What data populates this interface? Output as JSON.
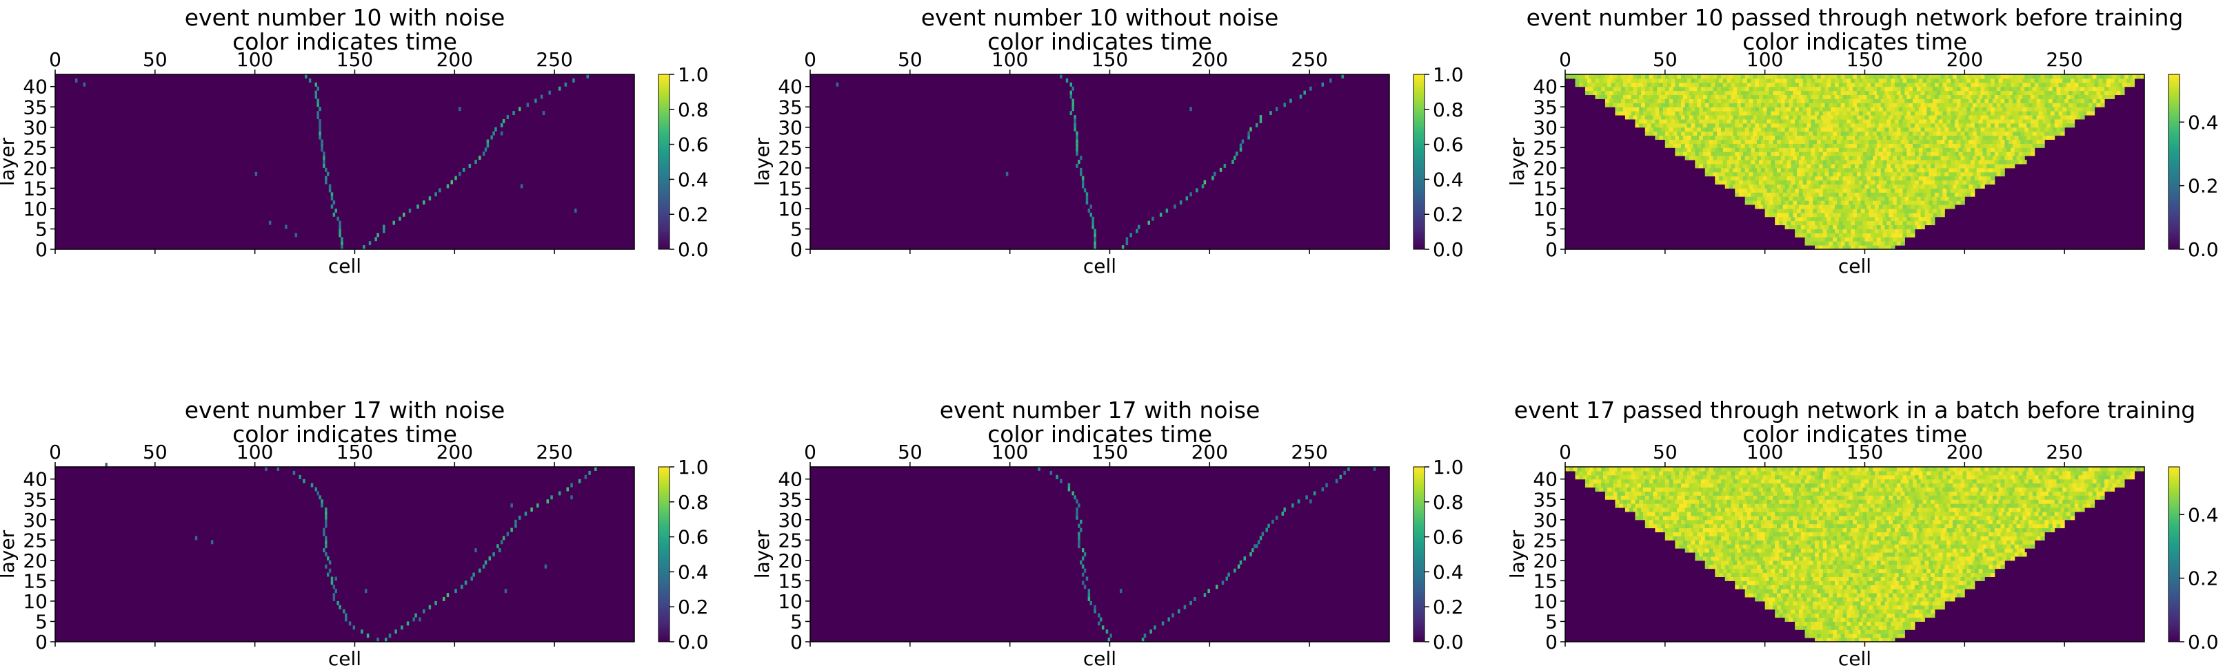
{
  "colormap": "viridis",
  "viridis_stops": [
    "#440154",
    "#482878",
    "#3e4989",
    "#31688e",
    "#26828e",
    "#1f9e89",
    "#35b779",
    "#6ece58",
    "#b5de2b",
    "#fde725"
  ],
  "chart_data": [
    {
      "type": "heatmap",
      "title": "event number 10 with noise",
      "subtitle": "color indicates time",
      "xlabel": "cell",
      "ylabel": "layer",
      "xlim": [
        0,
        290
      ],
      "ylim": [
        0,
        43
      ],
      "xticks": [
        "0",
        "50",
        "100",
        "150",
        "200",
        "250"
      ],
      "yticks": [
        "0",
        "5",
        "10",
        "15",
        "20",
        "25",
        "30",
        "35",
        "40"
      ],
      "colorbar": {
        "range": [
          0,
          1
        ],
        "ticks": [
          "0.0",
          "0.2",
          "0.4",
          "0.6",
          "0.8",
          "1.0"
        ]
      },
      "background_value": 0,
      "tracks": [
        {
          "points": [
            [
              143,
              0
            ],
            [
              142,
              4
            ],
            [
              140,
              8
            ],
            [
              138,
              12
            ],
            [
              136,
              16
            ],
            [
              134,
              20
            ],
            [
              133,
              25
            ],
            [
              132,
              30
            ],
            [
              131,
              35
            ],
            [
              130,
              40
            ],
            [
              122,
              43
            ]
          ],
          "value": 0.55
        },
        {
          "points": [
            [
              155,
              0
            ],
            [
              165,
              5
            ],
            [
              175,
              8
            ],
            [
              188,
              12
            ],
            [
              200,
              17
            ],
            [
              212,
              22
            ],
            [
              218,
              27
            ],
            [
              225,
              32
            ],
            [
              240,
              36
            ],
            [
              255,
              40
            ],
            [
              270,
              43
            ]
          ],
          "value": 0.6
        }
      ],
      "noise_hits": [
        [
          10,
          41
        ],
        [
          14,
          40
        ],
        [
          100,
          18
        ],
        [
          107,
          6
        ],
        [
          202,
          34
        ],
        [
          244,
          33
        ],
        [
          223,
          28
        ],
        [
          115,
          5
        ],
        [
          120,
          3
        ],
        [
          233,
          15
        ],
        [
          260,
          9
        ]
      ],
      "noise_value": 0.35
    },
    {
      "type": "heatmap",
      "title": "event number 10 without noise",
      "subtitle": "color indicates time",
      "xlabel": "cell",
      "ylabel": "layer",
      "xlim": [
        0,
        290
      ],
      "ylim": [
        0,
        43
      ],
      "xticks": [
        "0",
        "50",
        "100",
        "150",
        "200",
        "250"
      ],
      "yticks": [
        "0",
        "5",
        "10",
        "15",
        "20",
        "25",
        "30",
        "35",
        "40"
      ],
      "colorbar": {
        "range": [
          0,
          1
        ],
        "ticks": [
          "0.0",
          "0.2",
          "0.4",
          "0.6",
          "0.8",
          "1.0"
        ]
      },
      "background_value": 0,
      "tracks": [
        {
          "points": [
            [
              143,
              0
            ],
            [
              142,
              4
            ],
            [
              140,
              8
            ],
            [
              138,
              12
            ],
            [
              136,
              16
            ],
            [
              134,
              20
            ],
            [
              133,
              25
            ],
            [
              132,
              30
            ],
            [
              131,
              35
            ],
            [
              130,
              40
            ],
            [
              122,
              43
            ]
          ],
          "value": 0.55
        },
        {
          "points": [
            [
              155,
              0
            ],
            [
              165,
              5
            ],
            [
              175,
              8
            ],
            [
              188,
              12
            ],
            [
              200,
              17
            ],
            [
              212,
              22
            ],
            [
              218,
              27
            ],
            [
              225,
              32
            ],
            [
              240,
              36
            ],
            [
              255,
              40
            ],
            [
              270,
              43
            ]
          ],
          "value": 0.6
        }
      ],
      "noise_hits": [
        [
          13,
          40
        ],
        [
          98,
          18
        ],
        [
          190,
          34
        ]
      ],
      "noise_value": 0.35
    },
    {
      "type": "heatmap",
      "title": "event number 10 passed through network before training",
      "subtitle": "color indicates time",
      "xlabel": "cell",
      "ylabel": "layer",
      "xlim": [
        0,
        290
      ],
      "ylim": [
        0,
        43
      ],
      "xticks": [
        "0",
        "50",
        "100",
        "150",
        "200",
        "250"
      ],
      "yticks": [
        "0",
        "5",
        "10",
        "15",
        "20",
        "25",
        "30",
        "35",
        "40"
      ],
      "colorbar": {
        "range": [
          0,
          0.55
        ],
        "ticks": [
          "0.0",
          "0.2",
          "0.4"
        ]
      },
      "background_value": 0,
      "wedge": {
        "top_left": 0,
        "top_right": 290,
        "bottom_left": 125,
        "bottom_right": 165,
        "fill_range": [
          0.45,
          0.55
        ]
      }
    },
    {
      "type": "heatmap",
      "title": "event number 17 with noise",
      "subtitle": "color indicates time",
      "xlabel": "cell",
      "ylabel": "layer",
      "xlim": [
        0,
        290
      ],
      "ylim": [
        0,
        43
      ],
      "xticks": [
        "0",
        "50",
        "100",
        "150",
        "200",
        "250"
      ],
      "yticks": [
        "0",
        "5",
        "10",
        "15",
        "20",
        "25",
        "30",
        "35",
        "40"
      ],
      "colorbar": {
        "range": [
          0,
          1
        ],
        "ticks": [
          "0.0",
          "0.2",
          "0.4",
          "0.6",
          "0.8",
          "1.0"
        ]
      },
      "background_value": 0,
      "tracks": [
        {
          "points": [
            [
              160,
              0
            ],
            [
              148,
              3
            ],
            [
              142,
              8
            ],
            [
              138,
              13
            ],
            [
              136,
              18
            ],
            [
              134,
              23
            ],
            [
              135,
              28
            ],
            [
              134,
              33
            ],
            [
              128,
              38
            ],
            [
              118,
              41
            ],
            [
              104,
              43
            ]
          ],
          "value": 0.55
        },
        {
          "points": [
            [
              165,
              0
            ],
            [
              178,
              5
            ],
            [
              190,
              9
            ],
            [
              205,
              14
            ],
            [
              215,
              18
            ],
            [
              222,
              23
            ],
            [
              232,
              30
            ],
            [
              248,
              35
            ],
            [
              262,
              39
            ],
            [
              272,
              43
            ]
          ],
          "value": 0.6
        }
      ],
      "noise_hits": [
        [
          25,
          43
        ],
        [
          70,
          25
        ],
        [
          78,
          24
        ],
        [
          140,
          15
        ],
        [
          155,
          12
        ],
        [
          210,
          22
        ],
        [
          225,
          12
        ],
        [
          245,
          18
        ],
        [
          258,
          35
        ],
        [
          228,
          33
        ],
        [
          105,
          42
        ],
        [
          182,
          5
        ]
      ],
      "noise_value": 0.35
    },
    {
      "type": "heatmap",
      "title": "event number 17 with noise",
      "subtitle": "color indicates time",
      "xlabel": "cell",
      "ylabel": "layer",
      "xlim": [
        0,
        290
      ],
      "ylim": [
        0,
        43
      ],
      "xticks": [
        "0",
        "50",
        "100",
        "150",
        "200",
        "250"
      ],
      "yticks": [
        "0",
        "5",
        "10",
        "15",
        "20",
        "25",
        "30",
        "35",
        "40"
      ],
      "colorbar": {
        "range": [
          0,
          1
        ],
        "ticks": [
          "0.0",
          "0.2",
          "0.4",
          "0.6",
          "0.8",
          "1.0"
        ]
      },
      "background_value": 0,
      "tracks": [
        {
          "points": [
            [
              150,
              0
            ],
            [
              145,
              4
            ],
            [
              140,
              9
            ],
            [
              137,
              14
            ],
            [
              136,
              19
            ],
            [
              135,
              24
            ],
            [
              134,
              29
            ],
            [
              133,
              34
            ],
            [
              128,
              38
            ],
            [
              120,
              41
            ],
            [
              108,
              43
            ]
          ],
          "value": 0.55
        },
        {
          "points": [
            [
              165,
              0
            ],
            [
              178,
              5
            ],
            [
              190,
              9
            ],
            [
              205,
              14
            ],
            [
              215,
              18
            ],
            [
              222,
              23
            ],
            [
              232,
              30
            ],
            [
              248,
              35
            ],
            [
              262,
              39
            ],
            [
              272,
              43
            ]
          ],
          "value": 0.6
        }
      ],
      "noise_hits": [
        [
          155,
          12
        ],
        [
          222,
          23
        ],
        [
          250,
          34
        ],
        [
          282,
          42
        ]
      ],
      "noise_value": 0.35
    },
    {
      "type": "heatmap",
      "title": "event 17 passed through network in a batch before training",
      "subtitle": "color indicates time",
      "xlabel": "cell",
      "ylabel": "layer",
      "xlim": [
        0,
        290
      ],
      "ylim": [
        0,
        43
      ],
      "xticks": [
        "0",
        "50",
        "100",
        "150",
        "200",
        "250"
      ],
      "yticks": [
        "0",
        "5",
        "10",
        "15",
        "20",
        "25",
        "30",
        "35",
        "40"
      ],
      "colorbar": {
        "range": [
          0,
          0.55
        ],
        "ticks": [
          "0.0",
          "0.2",
          "0.4"
        ]
      },
      "background_value": 0,
      "wedge": {
        "top_left": 0,
        "top_right": 290,
        "bottom_left": 125,
        "bottom_right": 165,
        "fill_range": [
          0.45,
          0.55
        ]
      }
    }
  ]
}
